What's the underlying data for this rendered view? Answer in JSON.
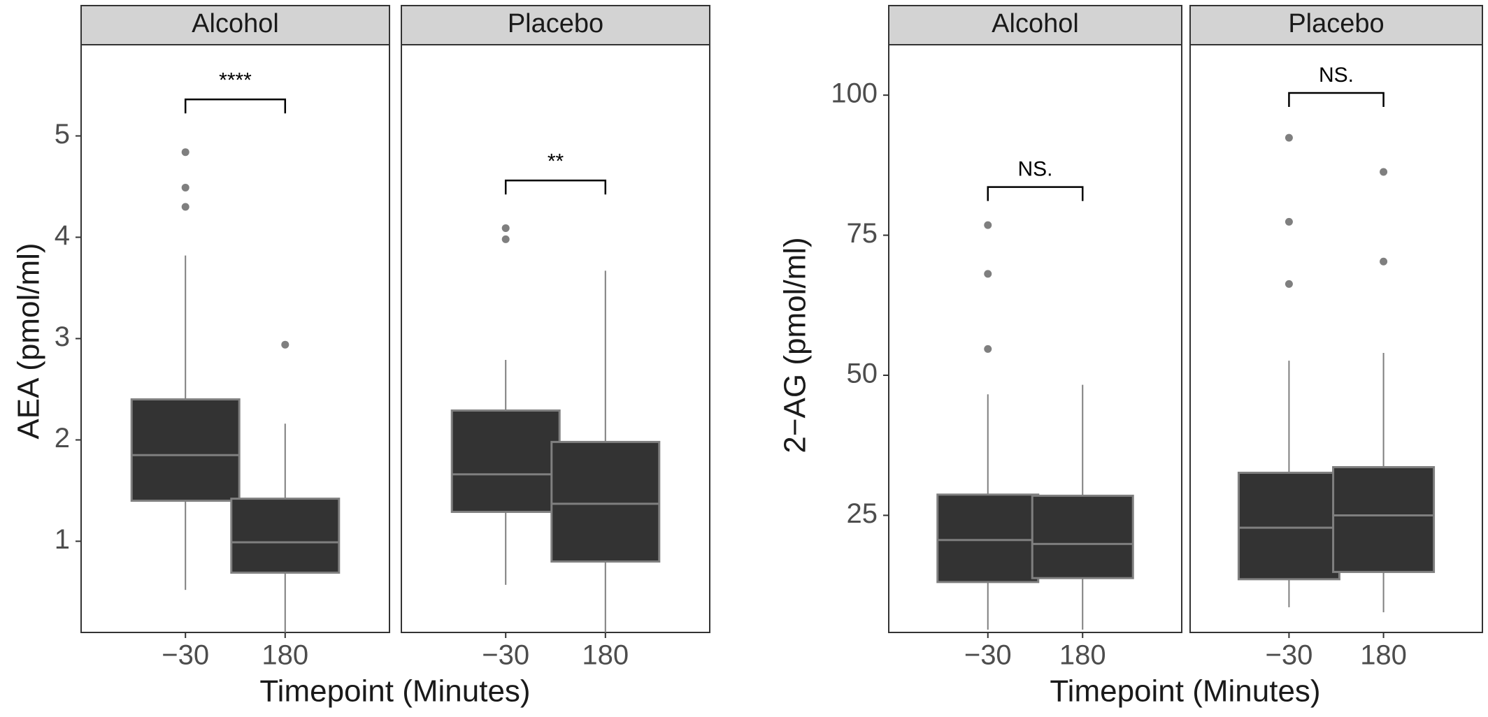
{
  "colors": {
    "box_fill": "#333333",
    "box_outline": "#7f7f7f",
    "median": "#7f7f7f",
    "whisker": "#7f7f7f",
    "outlier": "#7f7f7f",
    "strip_fill": "#d3d3d3",
    "panel_border": "#333333",
    "bracket": "#000000"
  },
  "chart_data": [
    {
      "type": "boxplot",
      "ylabel": "AEA (pmol/ml)",
      "xlabel": "Timepoint (Minutes)",
      "ylim": [
        0.1,
        5.9
      ],
      "yticks": [
        1,
        2,
        3,
        4,
        5
      ],
      "ytick_labels": [
        "1",
        "2",
        "3",
        "4",
        "5"
      ],
      "grid": false,
      "categories": [
        "−30",
        "180"
      ],
      "facets": [
        {
          "label": "Alcohol",
          "boxes": [
            {
              "x": "−30",
              "min": 0.52,
              "q1": 1.4,
              "median": 1.85,
              "q3": 2.4,
              "max": 3.82,
              "outliers": [
                4.3,
                4.49,
                4.84
              ]
            },
            {
              "x": "180",
              "min": 0.1,
              "q1": 0.69,
              "median": 0.99,
              "q3": 1.42,
              "max": 2.16,
              "outliers": [
                2.94
              ]
            }
          ],
          "comparison": {
            "label": "****",
            "y": 5.36
          }
        },
        {
          "label": "Placebo",
          "boxes": [
            {
              "x": "−30",
              "min": 0.57,
              "q1": 1.29,
              "median": 1.66,
              "q3": 2.29,
              "max": 2.79,
              "outliers": [
                3.98,
                4.09
              ]
            },
            {
              "x": "180",
              "min": 0.1,
              "q1": 0.8,
              "median": 1.37,
              "q3": 1.98,
              "max": 3.67,
              "outliers": []
            }
          ],
          "comparison": {
            "label": "**",
            "y": 4.56
          }
        }
      ]
    },
    {
      "type": "boxplot",
      "ylabel": "2−AG (pmol/ml)",
      "xlabel": "Timepoint (Minutes)",
      "ylim": [
        4.1,
        109
      ],
      "yticks": [
        25,
        50,
        75,
        100
      ],
      "ytick_labels": [
        "25",
        "50",
        "75",
        "100"
      ],
      "grid": false,
      "categories": [
        "−30",
        "180"
      ],
      "facets": [
        {
          "label": "Alcohol",
          "boxes": [
            {
              "x": "−30",
              "min": 4.6,
              "q1": 13.1,
              "median": 20.6,
              "q3": 28.7,
              "max": 46.6,
              "outliers": [
                54.7,
                68.1,
                76.8
              ]
            },
            {
              "x": "180",
              "min": 4.6,
              "q1": 13.8,
              "median": 19.9,
              "q3": 28.5,
              "max": 48.3,
              "outliers": []
            }
          ],
          "comparison": {
            "label": "NS.",
            "y": 83.6
          }
        },
        {
          "label": "Placebo",
          "boxes": [
            {
              "x": "−30",
              "min": 8.6,
              "q1": 13.6,
              "median": 22.8,
              "q3": 32.6,
              "max": 52.6,
              "outliers": [
                66.3,
                77.4,
                92.4
              ]
            },
            {
              "x": "180",
              "min": 7.7,
              "q1": 14.9,
              "median": 25.0,
              "q3": 33.6,
              "max": 54.0,
              "outliers": [
                70.3,
                86.3
              ]
            }
          ],
          "comparison": {
            "label": "NS.",
            "y": 100.4
          }
        }
      ]
    }
  ]
}
